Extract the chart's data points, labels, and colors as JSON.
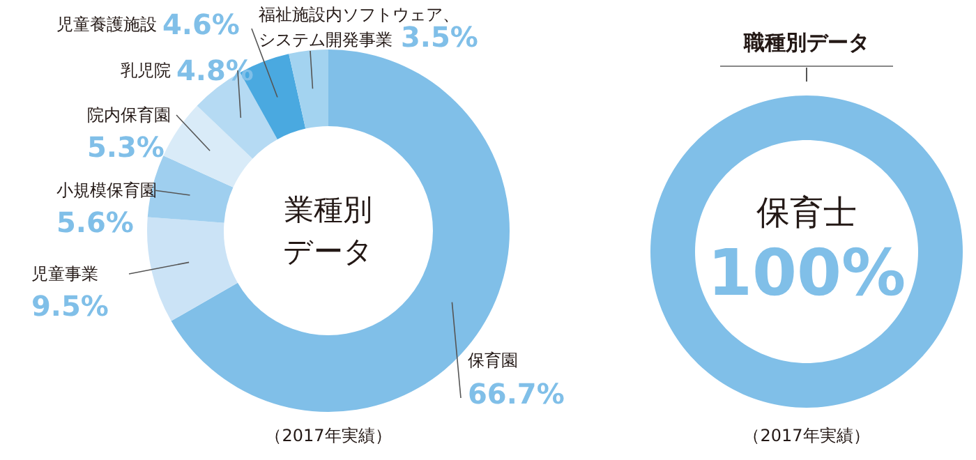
{
  "chart_data": [
    {
      "type": "donut",
      "title": "業種別データ",
      "categories": [
        "保育園",
        "児童事業",
        "小規模保育園",
        "院内保育園",
        "乳児院",
        "児童養護施設",
        "福祉施設内ソフトウェア、システム開発事業"
      ],
      "values": [
        66.7,
        9.5,
        5.6,
        5.3,
        4.8,
        4.6,
        3.5
      ],
      "colors": [
        "#80bfe8",
        "#cbe3f6",
        "#9fcfef",
        "#d9ebf8",
        "#b5daf3",
        "#4aa9e0",
        "#a3d3f0"
      ],
      "value_labels": [
        "66.7%",
        "9.5%",
        "5.6%",
        "5.3%",
        "4.8%",
        "4.6%",
        "3.5%"
      ],
      "annotations": [
        "（2017年実績）"
      ]
    },
    {
      "type": "donut",
      "title": "職種別データ",
      "categories": [
        "保育士"
      ],
      "values": [
        100
      ],
      "colors": [
        "#80bfe8"
      ],
      "value_labels": [
        "100%"
      ],
      "annotations": [
        "（2017年実績）"
      ]
    }
  ]
}
